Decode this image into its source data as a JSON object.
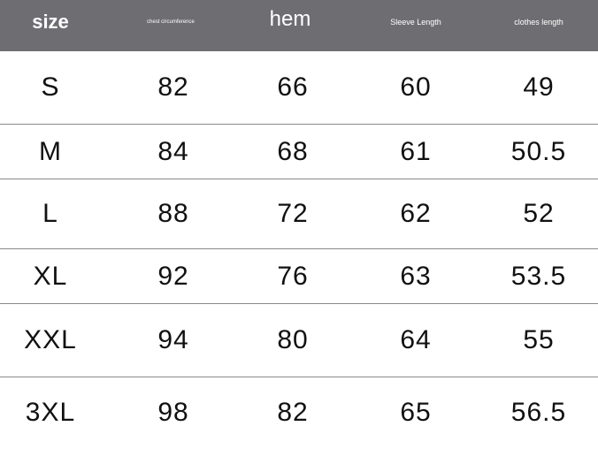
{
  "header": [
    "size",
    "chest circumference",
    "hem",
    "Sleeve Length",
    "clothes length"
  ],
  "header_color": "#6e6d72",
  "rows": [
    [
      "S",
      "82",
      "66",
      "60",
      "49"
    ],
    [
      "M",
      "84",
      "68",
      "61",
      "50.5"
    ],
    [
      "L",
      "88",
      "72",
      "62",
      "52"
    ],
    [
      "XL",
      "92",
      "76",
      "63",
      "53.5"
    ],
    [
      "XXL",
      "94",
      "80",
      "64",
      "55"
    ],
    [
      "3XL",
      "98",
      "82",
      "65",
      "56.5"
    ]
  ]
}
